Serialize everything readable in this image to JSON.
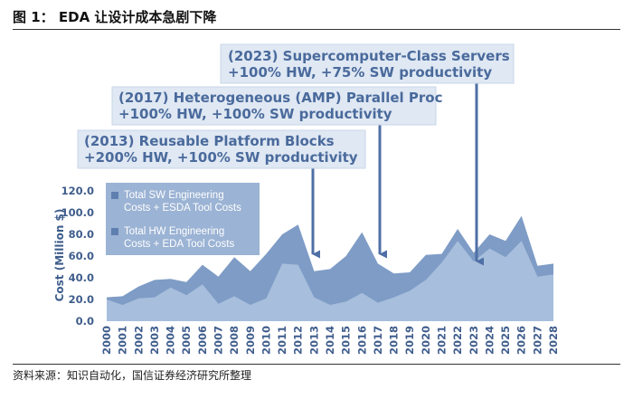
{
  "figure_title": "图 1：  EDA 让设计成本急剧下降",
  "source": "资料来源：知识自动化，国信证券经济研究所整理",
  "colors": {
    "sw_area": "#7e9cc6",
    "hw_area": "#a7bedc",
    "callout_fill": "#dfe8f3",
    "callout_text": "#4a6a9c",
    "arrow": "#4f6fa6",
    "axis_text": "#3f5d8c",
    "legend_box": "#8aa6cd"
  },
  "callouts": [
    {
      "line1": "(2023) Supercomputer-Class Servers",
      "line2": "+100% HW, +75% SW productivity",
      "year": "2023"
    },
    {
      "line1": "(2017) Heterogeneous (AMP) Parallel Proc",
      "line2": "+100% HW, +100% SW productivity",
      "year": "2017"
    },
    {
      "line1": "(2013) Reusable Platform Blocks",
      "line2": "+200% HW, +100% SW productivity",
      "year": "2013"
    }
  ],
  "chart_data": {
    "type": "area",
    "ylabel": "Cost (Million $)",
    "xlabel": "",
    "ylim": [
      0,
      120
    ],
    "yticks": [
      "0.0",
      "20.0",
      "40.0",
      "60.0",
      "80.0",
      "100.0",
      "120.0"
    ],
    "categories": [
      "2000",
      "2001",
      "2002",
      "2003",
      "2004",
      "2005",
      "2006",
      "2007",
      "2008",
      "2009",
      "2010",
      "2011",
      "2012",
      "2013",
      "2014",
      "2015",
      "2016",
      "2017",
      "2018",
      "2019",
      "2020",
      "2021",
      "2022",
      "2023",
      "2024",
      "2025",
      "2026",
      "2027",
      "2028"
    ],
    "series": [
      {
        "name": "Total SW Engineering Costs + ESDA Tool Costs",
        "values": [
          22,
          23,
          32,
          38,
          39,
          36,
          52,
          41,
          59,
          46,
          62,
          80,
          89,
          46,
          48,
          60,
          82,
          53,
          44,
          45,
          61,
          62,
          85,
          63,
          80,
          74,
          97,
          51,
          53
        ]
      },
      {
        "name": "Total HW Engineering Costs + EDA Tool Costs",
        "values": [
          20,
          15,
          21,
          22,
          31,
          24,
          34,
          16,
          23,
          15,
          21,
          53,
          52,
          22,
          15,
          18,
          26,
          17,
          22,
          28,
          38,
          54,
          74,
          55,
          67,
          59,
          74,
          41,
          43
        ]
      }
    ],
    "legend": [
      "Total SW Engineering Costs + ESDA Tool Costs",
      "Total HW Engineering Costs + EDA Tool Costs"
    ],
    "legend_placement": "top-left",
    "grid": false
  }
}
